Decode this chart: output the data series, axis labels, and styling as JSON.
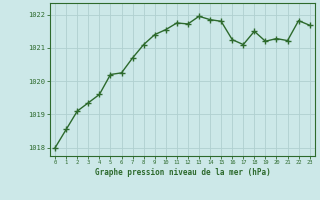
{
  "x": [
    0,
    1,
    2,
    3,
    4,
    5,
    6,
    7,
    8,
    9,
    10,
    11,
    12,
    13,
    14,
    15,
    16,
    17,
    18,
    19,
    20,
    21,
    22,
    23
  ],
  "y": [
    1018.0,
    1018.55,
    1019.1,
    1019.35,
    1019.6,
    1020.2,
    1020.25,
    1020.7,
    1021.1,
    1021.4,
    1021.55,
    1021.75,
    1021.72,
    1021.95,
    1021.85,
    1021.8,
    1021.25,
    1021.1,
    1021.5,
    1021.2,
    1021.28,
    1021.22,
    1021.82,
    1021.68
  ],
  "line_color": "#2d6a2d",
  "marker_color": "#2d6a2d",
  "bg_color": "#cce8e8",
  "grid_color": "#b0d0d0",
  "xlabel": "Graphe pression niveau de la mer (hPa)",
  "xlabel_color": "#2d6a2d",
  "tick_color": "#2d6a2d",
  "ylim": [
    1017.75,
    1022.35
  ],
  "yticks": [
    1018,
    1019,
    1020,
    1021,
    1022
  ],
  "xticks": [
    0,
    1,
    2,
    3,
    4,
    5,
    6,
    7,
    8,
    9,
    10,
    11,
    12,
    13,
    14,
    15,
    16,
    17,
    18,
    19,
    20,
    21,
    22,
    23
  ],
  "marker_size": 2.5,
  "line_width": 1.0
}
